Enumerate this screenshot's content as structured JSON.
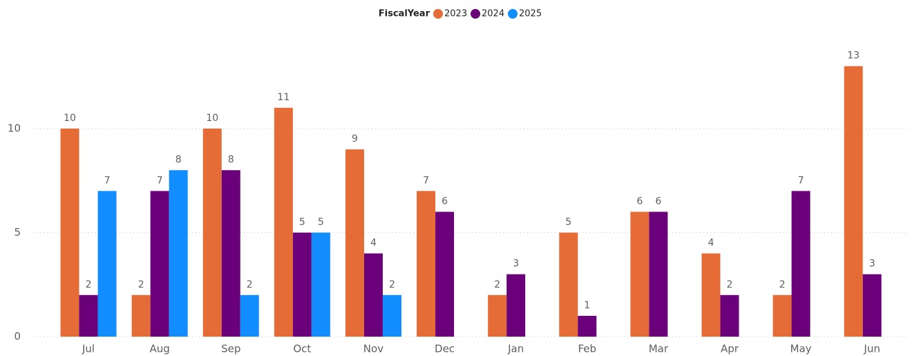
{
  "chart_data": {
    "type": "bar",
    "legend_title": "FiscalYear",
    "categories": [
      "Jul",
      "Aug",
      "Sep",
      "Oct",
      "Nov",
      "Dec",
      "Jan",
      "Feb",
      "Mar",
      "Apr",
      "May",
      "Jun"
    ],
    "series": [
      {
        "name": "2023",
        "color": "#E66C37",
        "values": [
          10,
          2,
          10,
          11,
          9,
          7,
          2,
          5,
          6,
          4,
          2,
          13
        ]
      },
      {
        "name": "2024",
        "color": "#6B007B",
        "values": [
          2,
          7,
          8,
          5,
          4,
          6,
          3,
          1,
          6,
          2,
          7,
          3
        ]
      },
      {
        "name": "2025",
        "color": "#118DFF",
        "values": [
          7,
          8,
          2,
          5,
          2,
          null,
          null,
          null,
          null,
          null,
          null,
          null
        ]
      }
    ],
    "ylim": [
      0,
      14
    ],
    "yticks": [
      0,
      5,
      10
    ],
    "grid": true,
    "legend_position": "top"
  }
}
